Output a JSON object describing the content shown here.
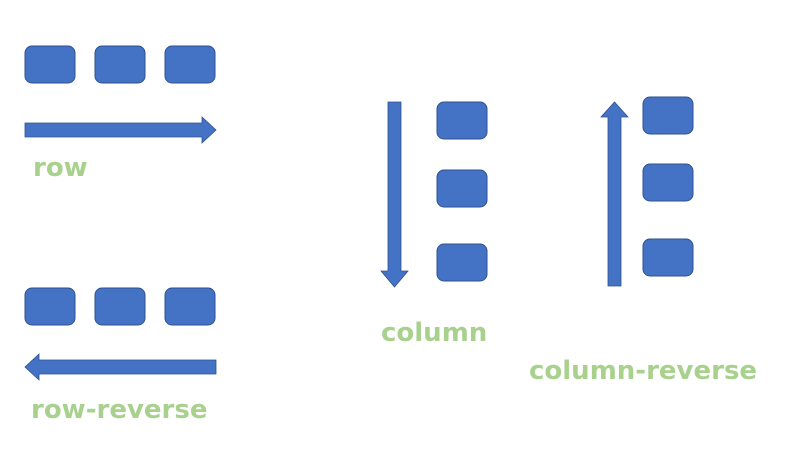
{
  "labels": {
    "row": "row",
    "row_reverse": "row-reverse",
    "column": "column",
    "column_reverse": "column-reverse"
  },
  "colors": {
    "box_fill": "#4472c4",
    "box_stroke": "#2f528f",
    "label_text": "#a9d18e",
    "background": "#ffffff"
  }
}
